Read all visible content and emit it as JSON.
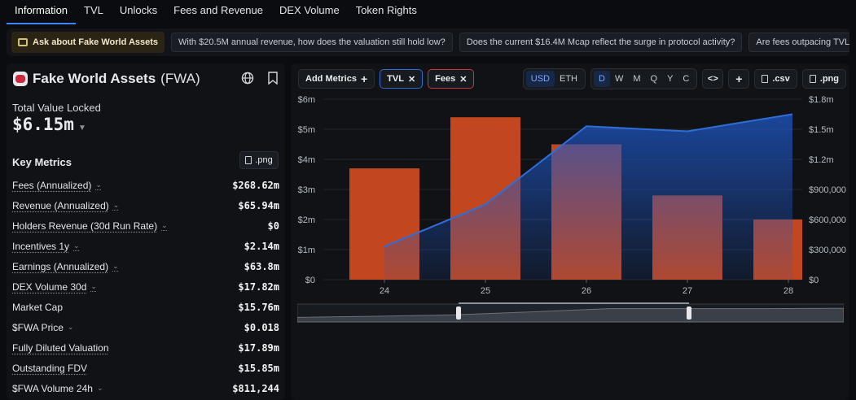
{
  "tabs": [
    {
      "label": "Information"
    },
    {
      "label": "TVL"
    },
    {
      "label": "Unlocks"
    },
    {
      "label": "Fees and Revenue"
    },
    {
      "label": "DEX Volume"
    },
    {
      "label": "Token Rights"
    }
  ],
  "ask": {
    "main": "Ask about Fake World Assets",
    "prompts": [
      "With $20.5M annual revenue, how does the valuation still hold low?",
      "Does the current $16.4M Mcap reflect the surge in protocol activity?",
      "Are fees outpacing TVL growth sugg"
    ]
  },
  "asset": {
    "name": "Fake World Assets",
    "ticker": "(FWA)"
  },
  "tvl": {
    "label": "Total Value Locked",
    "value": "$6.15m"
  },
  "key_metrics": {
    "title": "Key Metrics",
    "png_label": ".png",
    "rows": [
      {
        "name": "Fees (Annualized)",
        "value": "$268.62m",
        "dropdown": true,
        "underline": true
      },
      {
        "name": "Revenue (Annualized)",
        "value": "$65.94m",
        "dropdown": true,
        "underline": true
      },
      {
        "name": "Holders Revenue (30d Run Rate)",
        "value": "$0",
        "dropdown": true,
        "underline": true
      },
      {
        "name": "Incentives 1y",
        "value": "$2.14m",
        "dropdown": true,
        "underline": true
      },
      {
        "name": "Earnings (Annualized)",
        "value": "$63.8m",
        "dropdown": true,
        "underline": true
      },
      {
        "name": "DEX Volume 30d",
        "value": "$17.82m",
        "dropdown": true,
        "underline": true
      },
      {
        "name": "Market Cap",
        "value": "$15.76m",
        "dropdown": false,
        "underline": false
      },
      {
        "name": "$FWA Price",
        "value": "$0.018",
        "dropdown": true,
        "underline": false
      },
      {
        "name": "Fully Diluted Valuation",
        "value": "$17.89m",
        "dropdown": false,
        "underline": true
      },
      {
        "name": "Outstanding FDV",
        "value": "$15.85m",
        "dropdown": false,
        "underline": true
      },
      {
        "name": "$FWA Volume 24h",
        "value": "$811,244",
        "dropdown": true,
        "underline": false
      }
    ]
  },
  "toolbar": {
    "add_metrics": "Add Metrics",
    "tvl_chip": "TVL",
    "fees_chip": "Fees",
    "currencies": [
      "USD",
      "ETH"
    ],
    "currency_selected": "USD",
    "periods": [
      "D",
      "W",
      "M",
      "Q",
      "Y",
      "C"
    ],
    "period_selected": "D",
    "csv_label": ".csv",
    "png_label": ".png"
  },
  "colors": {
    "accent": "#3a86ff",
    "tvl_line": "#2f6ed8",
    "fees_bar": "#c2471f",
    "background": "#0b0c0f"
  },
  "chart_data": {
    "type": "bar",
    "categories": [
      "24",
      "25",
      "26",
      "27",
      "28"
    ],
    "series": [
      {
        "name": "Fees",
        "values": [
          3.7,
          5.4,
          4.5,
          2.8,
          2.0
        ],
        "axis": "left"
      },
      {
        "name": "TVL",
        "values": [
          0.33,
          0.75,
          1.53,
          1.48,
          1.65
        ],
        "axis": "right"
      }
    ],
    "left_ticks": [
      "$6m",
      "$5m",
      "$4m",
      "$3m",
      "$2m",
      "$1m",
      "$0"
    ],
    "right_ticks": [
      "$1.8m",
      "$1.5m",
      "$1.2m",
      "$900,000",
      "$600,000",
      "$300,000",
      "$0"
    ],
    "ylim_left": [
      0,
      6
    ],
    "ylim_right": [
      0,
      1.8
    ],
    "grid": true,
    "brush_trace": [
      0.28,
      0.35,
      0.44,
      0.62,
      0.82,
      0.82,
      0.82,
      0.84
    ]
  }
}
